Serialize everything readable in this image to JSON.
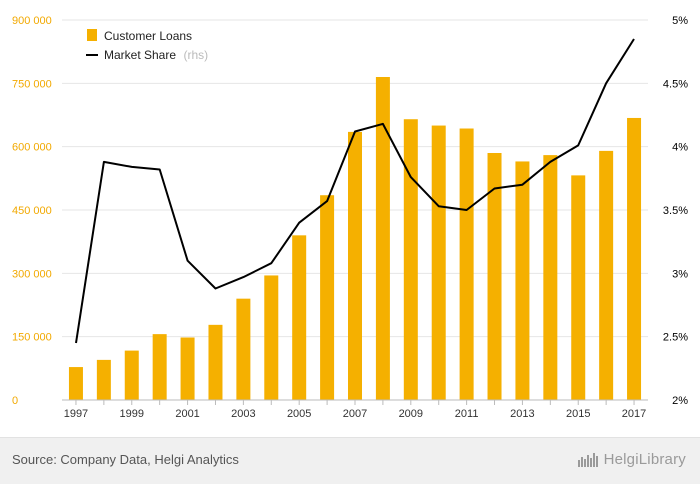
{
  "chart_data": {
    "type": "bar",
    "categories": [
      "1997",
      "1998",
      "1999",
      "2000",
      "2001",
      "2002",
      "2003",
      "2004",
      "2005",
      "2006",
      "2007",
      "2008",
      "2009",
      "2010",
      "2011",
      "2012",
      "2013",
      "2014",
      "2015",
      "2016",
      "2017"
    ],
    "x_tick_labels": [
      "1997",
      "1999",
      "2001",
      "2003",
      "2005",
      "2007",
      "2009",
      "2011",
      "2013",
      "2015",
      "2017"
    ],
    "series": [
      {
        "name": "Customer Loans",
        "type": "bar",
        "axis": "left",
        "color": "#f5b000",
        "values": [
          78000,
          95000,
          117000,
          156000,
          148000,
          178000,
          240000,
          295000,
          390000,
          485000,
          635000,
          765000,
          665000,
          650000,
          643000,
          585000,
          565000,
          580000,
          532000,
          590000,
          668000
        ]
      },
      {
        "name": "Market Share",
        "name_note": "(rhs)",
        "type": "line",
        "axis": "right",
        "color": "#000000",
        "values": [
          2.45,
          3.88,
          3.84,
          3.82,
          3.1,
          2.88,
          2.97,
          3.08,
          3.4,
          3.57,
          4.12,
          4.18,
          3.76,
          3.53,
          3.5,
          3.67,
          3.7,
          3.88,
          4.01,
          4.5,
          4.85
        ]
      }
    ],
    "y_left": {
      "min": 0,
      "max": 900000,
      "ticks": [
        0,
        150000,
        300000,
        450000,
        600000,
        750000,
        900000
      ],
      "tick_labels": [
        "0",
        "150 000",
        "300 000",
        "450 000",
        "600 000",
        "750 000",
        "900 000"
      ],
      "color": "#f2a900"
    },
    "y_right": {
      "min": 2,
      "max": 5,
      "ticks": [
        2,
        2.5,
        3,
        3.5,
        4,
        4.5,
        5
      ],
      "tick_labels": [
        "2%",
        "2.5%",
        "3%",
        "3.5%",
        "4%",
        "4.5%",
        "5%"
      ],
      "color": "#000000"
    },
    "grid": true,
    "legend": "top-left"
  },
  "footer": {
    "source": "Source: Company Data, Helgi Analytics",
    "brand": "HelgiLibrary",
    "brand_icon": "helgi-logo-icon"
  }
}
